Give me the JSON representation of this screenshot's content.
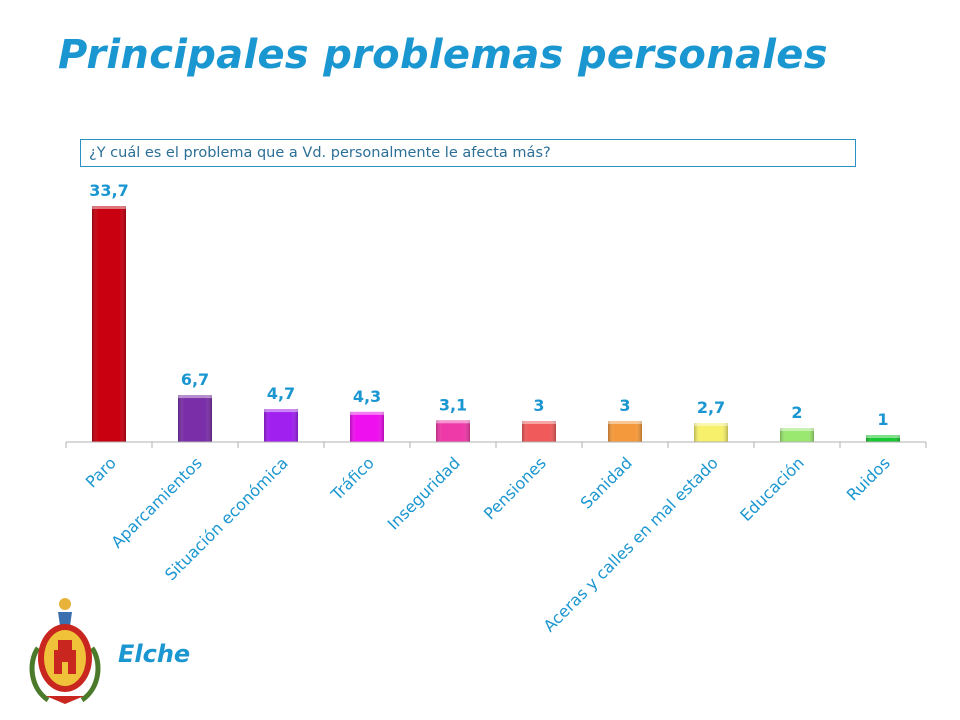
{
  "title": "Principales problemas personales",
  "question": "¿Y cuál es el problema que a Vd. personalmente le afecta más?",
  "city": "Elche",
  "chart_data": {
    "type": "bar",
    "categories": [
      "Paro",
      "Aparcamientos",
      "Situación económica",
      "Tráfico",
      "Inseguridad",
      "Pensiones",
      "Sanidad",
      "Aceras y calles en mal estado",
      "Educación",
      "Ruidos"
    ],
    "values": [
      33.7,
      6.7,
      4.7,
      4.3,
      3.1,
      3,
      3,
      2.7,
      2,
      1
    ],
    "value_labels": [
      "33,7",
      "6,7",
      "4,7",
      "4,3",
      "3,1",
      "3",
      "3",
      "2,7",
      "2",
      "1"
    ],
    "colors": [
      "#c8000f",
      "#7a2fa8",
      "#a020f0",
      "#ee10ee",
      "#ee3aa8",
      "#f05a5a",
      "#f59a3c",
      "#f6f06a",
      "#9be870",
      "#18c830"
    ],
    "ylim": [
      0,
      33.7
    ],
    "grid": false,
    "legend": "none"
  }
}
